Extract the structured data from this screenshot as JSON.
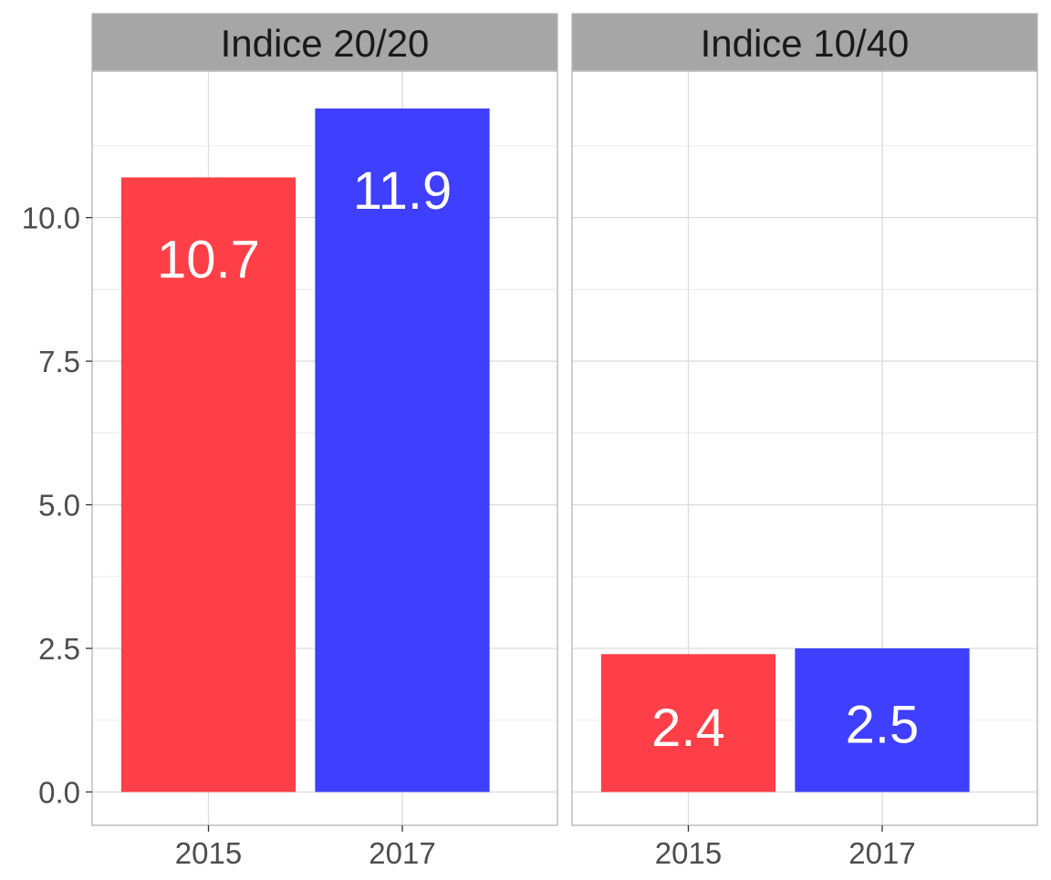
{
  "chart_data": {
    "type": "bar",
    "title": "",
    "xlabel": "",
    "ylabel": "",
    "ylim": [
      -0.58,
      12.55
    ],
    "y_ticks": [
      "0.0",
      "2.5",
      "5.0",
      "7.5",
      "10.0"
    ],
    "y_tick_values": [
      0,
      2.5,
      5,
      7.5,
      10
    ],
    "grid": true,
    "legend": "none",
    "colors": {
      "2015": "#ff3f47",
      "2017": "#3f3fff",
      "strip_bg": "#a6a6a6",
      "label": "#ffffff"
    },
    "panels": [
      {
        "strip": "Indice 20/20",
        "categories": [
          "2015",
          "2017"
        ],
        "values": [
          10.7,
          11.9
        ],
        "labels": [
          "10.7",
          "11.9"
        ]
      },
      {
        "strip": "Indice 10/40",
        "categories": [
          "2015",
          "2017"
        ],
        "values": [
          2.4,
          2.5
        ],
        "labels": [
          "2.4",
          "2.5"
        ]
      }
    ]
  }
}
